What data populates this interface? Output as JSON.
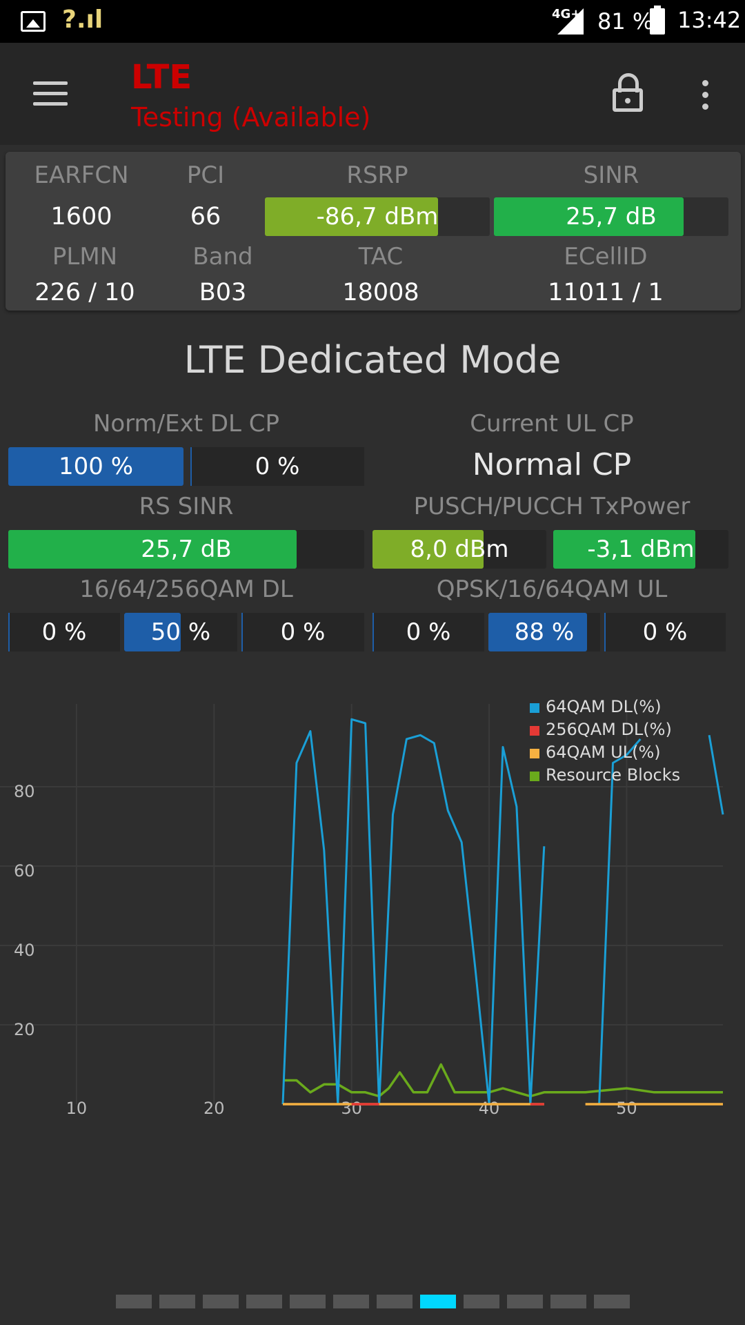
{
  "status_bar": {
    "signal_text": "?.ıl",
    "network": "4G+",
    "battery": "81 %",
    "time": "13:42",
    "icons": [
      "image-icon",
      "signal-icon",
      "network-signal-icon",
      "battery-icon"
    ]
  },
  "app_bar": {
    "title": "LTE",
    "subtitle": "Testing (Available)",
    "title_color": "#cc0000",
    "icons": [
      "menu-icon",
      "lock-open-icon",
      "more-vert-icon"
    ]
  },
  "cell_info": {
    "earfcn_label": "EARFCN",
    "earfcn": "1600",
    "pci_label": "PCI",
    "pci": "66",
    "rsrp_label": "RSRP",
    "rsrp": "-86,7 dBm",
    "rsrp_fill": 0.77,
    "rsrp_color": "#7fad28",
    "sinr_label": "SINR",
    "sinr": "25,7 dB",
    "sinr_fill": 0.81,
    "sinr_color": "#22b04a",
    "plmn_label": "PLMN",
    "plmn": "226 / 10",
    "band_label": "Band",
    "band": "B03",
    "tac_label": "TAC",
    "tac": "18008",
    "ecellid_label": "ECellID",
    "ecellid": "11011 / 1"
  },
  "dedicated": {
    "title": "LTE Dedicated Mode",
    "cp_dl_label": "Norm/Ext DL CP",
    "cp_dl_norm": "100 %",
    "cp_dl_norm_fill": 1.0,
    "cp_dl_ext": "0 %",
    "cp_ul_label": "Current UL CP",
    "cp_ul_value": "Normal CP",
    "rs_sinr_label": "RS SINR",
    "rs_sinr": "25,7 dB",
    "rs_sinr_fill": 0.81,
    "txpower_label": "PUSCH/PUCCH TxPower",
    "pusch": "8,0 dBm",
    "pusch_fill": 0.64,
    "pucch": "-3,1 dBm",
    "pucch_fill": 0.81,
    "qam_dl_label": "16/64/256QAM DL",
    "qam16_dl": "0 %",
    "qam64_dl": "50 %",
    "qam64_dl_fill": 0.5,
    "qam256_dl": "0 %",
    "qam_ul_label": "QPSK/16/64QAM UL",
    "qpsk_ul": "0 %",
    "qam16_ul": "88 %",
    "qam16_ul_fill": 0.88,
    "qam64_ul": "0 %",
    "blue": "#1e5ea8"
  },
  "chart_data": {
    "type": "line",
    "title": "",
    "xlabel": "",
    "ylabel": "",
    "xlim": [
      0,
      57
    ],
    "ylim": [
      -3,
      102
    ],
    "xticks": [
      10,
      20,
      30,
      40,
      50
    ],
    "yticks": [
      20,
      40,
      60,
      80
    ],
    "grid": true,
    "legend_position": "top-right",
    "series": [
      {
        "name": "64QAM DL(%)",
        "color": "#1a9fd6",
        "segments": [
          [
            [
              25,
              0
            ],
            [
              26,
              86
            ],
            [
              27,
              94
            ],
            [
              28,
              64
            ],
            [
              29,
              0
            ],
            [
              30,
              97
            ],
            [
              31,
              96
            ],
            [
              32,
              0
            ],
            [
              33,
              73
            ],
            [
              34,
              92
            ],
            [
              35,
              93
            ],
            [
              36,
              91
            ],
            [
              37,
              74
            ],
            [
              38,
              66
            ],
            [
              39,
              34
            ],
            [
              40,
              0
            ],
            [
              41,
              90
            ],
            [
              42,
              75
            ],
            [
              43,
              0
            ],
            [
              44,
              65
            ]
          ],
          [
            [
              48,
              0
            ],
            [
              49,
              86
            ],
            [
              50,
              88
            ],
            [
              51,
              92
            ]
          ],
          [
            [
              56,
              93
            ],
            [
              57,
              73
            ]
          ]
        ]
      },
      {
        "name": "256QAM DL(%)",
        "color": "#e53935",
        "segments": [
          [
            [
              30,
              0
            ],
            [
              31,
              0
            ],
            [
              32,
              0
            ]
          ],
          [
            [
              43,
              0
            ],
            [
              44,
              0
            ]
          ]
        ]
      },
      {
        "name": "64QAM UL(%)",
        "color": "#f5b041",
        "segments": [
          [
            [
              25,
              0
            ],
            [
              26,
              0
            ],
            [
              27,
              0
            ],
            [
              28,
              0
            ],
            [
              29,
              0
            ],
            [
              30,
              0
            ],
            [
              31,
              0
            ],
            [
              32,
              0
            ],
            [
              33,
              0
            ],
            [
              34,
              0
            ],
            [
              35,
              0
            ],
            [
              36,
              0
            ],
            [
              37,
              0
            ],
            [
              38,
              0
            ],
            [
              39,
              0
            ],
            [
              40,
              0
            ],
            [
              41,
              0
            ],
            [
              42,
              0
            ],
            [
              43,
              0
            ],
            [
              44,
              0
            ]
          ],
          [
            [
              47,
              0
            ],
            [
              48,
              0
            ],
            [
              49,
              0
            ],
            [
              50,
              0
            ],
            [
              51,
              0
            ],
            [
              52,
              0
            ],
            [
              53,
              0
            ],
            [
              54,
              0
            ],
            [
              55,
              0
            ],
            [
              56,
              0
            ],
            [
              57,
              0
            ]
          ]
        ]
      },
      {
        "name": "Resource Blocks",
        "color": "#6aaa1c",
        "segments": [
          [
            [
              25,
              6
            ],
            [
              26,
              6
            ],
            [
              27,
              3
            ],
            [
              28,
              5
            ],
            [
              29,
              5
            ],
            [
              30,
              3
            ],
            [
              31,
              3
            ],
            [
              32,
              2
            ],
            [
              32.7,
              4
            ],
            [
              33.5,
              8
            ],
            [
              34.5,
              3
            ],
            [
              35.5,
              3
            ],
            [
              36.5,
              10
            ],
            [
              37.5,
              3
            ],
            [
              40,
              3
            ],
            [
              41,
              4
            ],
            [
              42,
              3
            ],
            [
              43,
              2
            ],
            [
              44,
              3
            ],
            [
              45,
              3
            ],
            [
              47,
              3
            ],
            [
              50,
              4
            ],
            [
              52,
              3
            ],
            [
              57,
              3
            ]
          ]
        ]
      }
    ]
  },
  "pager": {
    "count": 12,
    "active": 7,
    "active_color": "#00d8ff",
    "inactive_color": "#555555"
  }
}
